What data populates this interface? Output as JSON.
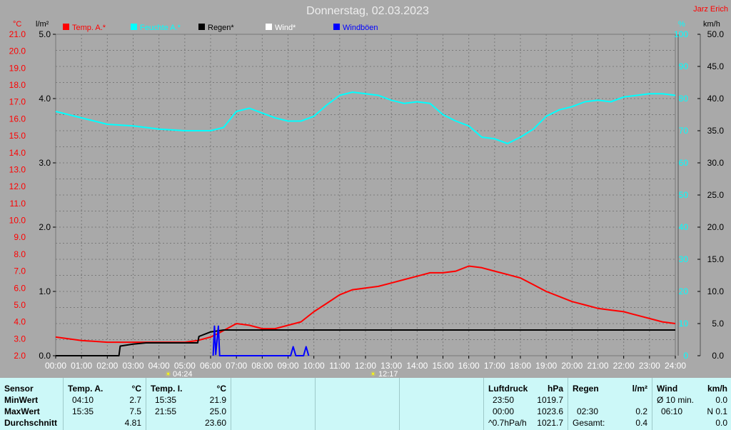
{
  "title": "Donnerstag, 02.03.2023",
  "station": "Jarz Erich",
  "units": {
    "temp": "°C",
    "rain": "l/m²",
    "hum": "%",
    "wind": "km/h"
  },
  "legend": [
    {
      "label": "Temp. A.*",
      "color": "#ff0000"
    },
    {
      "label": "Feuchte A.*",
      "color": "#00ffff"
    },
    {
      "label": "Regen*",
      "color": "#000000"
    },
    {
      "label": "Wind*",
      "color": "#ffffff"
    },
    {
      "label": "Windböen",
      "color": "#0000ff"
    }
  ],
  "sun": {
    "rise": "04:24",
    "noon": "12:17"
  },
  "chart_data": {
    "type": "line",
    "x_ticks": [
      "00:00",
      "01:00",
      "02:00",
      "03:00",
      "04:00",
      "05:00",
      "06:00",
      "07:00",
      "08:00",
      "09:00",
      "10:00",
      "11:00",
      "12:00",
      "13:00",
      "14:00",
      "15:00",
      "16:00",
      "17:00",
      "18:00",
      "19:00",
      "20:00",
      "21:00",
      "22:00",
      "23:00",
      "24:00"
    ],
    "axes": {
      "temp": {
        "range": [
          2.0,
          21.0
        ],
        "ticks": [
          "2.0",
          "3.0",
          "4.0",
          "5.0",
          "6.0",
          "7.0",
          "8.0",
          "9.0",
          "10.0",
          "11.0",
          "12.0",
          "13.0",
          "14.0",
          "15.0",
          "16.0",
          "17.0",
          "18.0",
          "19.0",
          "20.0",
          "21.0"
        ],
        "color": "#ff0000"
      },
      "rain": {
        "range": [
          0.0,
          5.0
        ],
        "ticks": [
          "0.0",
          "1.0",
          "2.0",
          "3.0",
          "4.0",
          "5.0"
        ],
        "color": "#000000"
      },
      "hum": {
        "range": [
          0,
          100
        ],
        "ticks": [
          "0",
          "10",
          "20",
          "30",
          "40",
          "50",
          "60",
          "70",
          "80",
          "90",
          "100"
        ],
        "color": "#00ffff"
      },
      "wind": {
        "range": [
          0.0,
          50.0
        ],
        "ticks": [
          "0.0",
          "5.0",
          "10.0",
          "15.0",
          "20.0",
          "25.0",
          "30.0",
          "35.0",
          "40.0",
          "45.0",
          "50.0"
        ],
        "color": "#000000"
      }
    },
    "series": [
      {
        "name": "Temp. A.*",
        "axis": "temp",
        "color": "#ff0000",
        "points": [
          [
            0,
            3.1
          ],
          [
            1,
            2.9
          ],
          [
            2,
            2.8
          ],
          [
            3,
            2.8
          ],
          [
            4,
            2.8
          ],
          [
            5,
            2.8
          ],
          [
            5.5,
            2.9
          ],
          [
            6,
            3.1
          ],
          [
            6.4,
            3.4
          ],
          [
            7,
            3.9
          ],
          [
            7.5,
            3.8
          ],
          [
            8,
            3.6
          ],
          [
            8.5,
            3.6
          ],
          [
            9,
            3.8
          ],
          [
            9.5,
            4.0
          ],
          [
            10,
            4.6
          ],
          [
            10.5,
            5.1
          ],
          [
            11,
            5.6
          ],
          [
            11.5,
            5.9
          ],
          [
            12,
            6.0
          ],
          [
            12.5,
            6.1
          ],
          [
            13,
            6.3
          ],
          [
            13.5,
            6.5
          ],
          [
            14,
            6.7
          ],
          [
            14.5,
            6.9
          ],
          [
            15,
            6.9
          ],
          [
            15.5,
            7.0
          ],
          [
            16,
            7.3
          ],
          [
            16.5,
            7.2
          ],
          [
            17,
            7.0
          ],
          [
            17.5,
            6.8
          ],
          [
            18,
            6.6
          ],
          [
            18.5,
            6.2
          ],
          [
            19,
            5.8
          ],
          [
            19.5,
            5.5
          ],
          [
            20,
            5.2
          ],
          [
            20.5,
            5.0
          ],
          [
            21,
            4.8
          ],
          [
            21.5,
            4.7
          ],
          [
            22,
            4.6
          ],
          [
            22.5,
            4.4
          ],
          [
            23,
            4.2
          ],
          [
            23.5,
            4.0
          ],
          [
            24,
            3.9
          ]
        ]
      },
      {
        "name": "Feuchte A.*",
        "axis": "hum",
        "color": "#00ffff",
        "points": [
          [
            0,
            76
          ],
          [
            1,
            74
          ],
          [
            2,
            72
          ],
          [
            3,
            71.5
          ],
          [
            4,
            70.5
          ],
          [
            5,
            70
          ],
          [
            6,
            70
          ],
          [
            6.5,
            71
          ],
          [
            7,
            76
          ],
          [
            7.5,
            77
          ],
          [
            8,
            75.5
          ],
          [
            8.5,
            74
          ],
          [
            9,
            73
          ],
          [
            9.5,
            73
          ],
          [
            10,
            74.5
          ],
          [
            10.5,
            78
          ],
          [
            11,
            81
          ],
          [
            11.5,
            82
          ],
          [
            12,
            81.5
          ],
          [
            12.5,
            81
          ],
          [
            13,
            79.5
          ],
          [
            13.5,
            78.5
          ],
          [
            14,
            79
          ],
          [
            14.5,
            78.5
          ],
          [
            15,
            75
          ],
          [
            15.5,
            73
          ],
          [
            16,
            71.5
          ],
          [
            16.5,
            68
          ],
          [
            17,
            67.5
          ],
          [
            17.5,
            66
          ],
          [
            18,
            68
          ],
          [
            18.5,
            70.5
          ],
          [
            19,
            74.5
          ],
          [
            19.5,
            76.5
          ],
          [
            20,
            77.5
          ],
          [
            20.5,
            79
          ],
          [
            21,
            79.5
          ],
          [
            21.5,
            79
          ],
          [
            22,
            80.5
          ],
          [
            22.5,
            81
          ],
          [
            23,
            81.5
          ],
          [
            23.5,
            81.5
          ],
          [
            24,
            81
          ]
        ]
      },
      {
        "name": "Regen*",
        "axis": "rain",
        "color": "#000000",
        "points": [
          [
            0,
            0
          ],
          [
            2.45,
            0
          ],
          [
            2.5,
            0.15
          ],
          [
            3,
            0.18
          ],
          [
            3.5,
            0.2
          ],
          [
            4,
            0.2
          ],
          [
            5.5,
            0.2
          ],
          [
            5.55,
            0.3
          ],
          [
            6,
            0.37
          ],
          [
            6.5,
            0.4
          ],
          [
            24,
            0.4
          ]
        ]
      },
      {
        "name": "Windböen",
        "axis": "wind",
        "color": "#0000ff",
        "points": [
          [
            6.1,
            0
          ],
          [
            6.15,
            4.6
          ],
          [
            6.2,
            0.2
          ],
          [
            6.3,
            4.6
          ],
          [
            6.35,
            0
          ],
          [
            9.1,
            0
          ],
          [
            9.2,
            1.4
          ],
          [
            9.3,
            0
          ],
          [
            9.6,
            0
          ],
          [
            9.7,
            1.4
          ],
          [
            9.8,
            0
          ]
        ]
      }
    ]
  },
  "stats": {
    "row_labels": [
      "Sensor",
      "MinWert",
      "MaxWert",
      "Durchschnitt"
    ],
    "temp_a": {
      "header": "Temp. A.",
      "unit": "°C",
      "min_time": "04:10",
      "min_val": "2.7",
      "max_time": "15:35",
      "max_val": "7.5",
      "avg": "4.81"
    },
    "temp_i": {
      "header": "Temp. I.",
      "unit": "°C",
      "min_time": "15:35",
      "min_val": "21.9",
      "max_time": "21:55",
      "max_val": "25.0",
      "avg": "23.60"
    },
    "pressure": {
      "header": "Luftdruck",
      "unit": "hPa",
      "min_time": "23:50",
      "min_val": "1019.7",
      "max_time": "00:00",
      "max_val": "1023.6",
      "trend_label": "^0.7hPa/h",
      "trend_val": "1021.7"
    },
    "rain": {
      "header": "Regen",
      "unit": "l/m²",
      "max_time": "02:30",
      "max_val": "0.2",
      "total_label": "Gesamt:",
      "total_val": "0.4"
    },
    "wind": {
      "header": "Wind",
      "unit": "km/h",
      "avg_label": "Ø 10 min.",
      "avg_val": "0.0",
      "max_time": "06:10",
      "max_val": "N 0.1",
      "last_val": "0.0"
    }
  }
}
